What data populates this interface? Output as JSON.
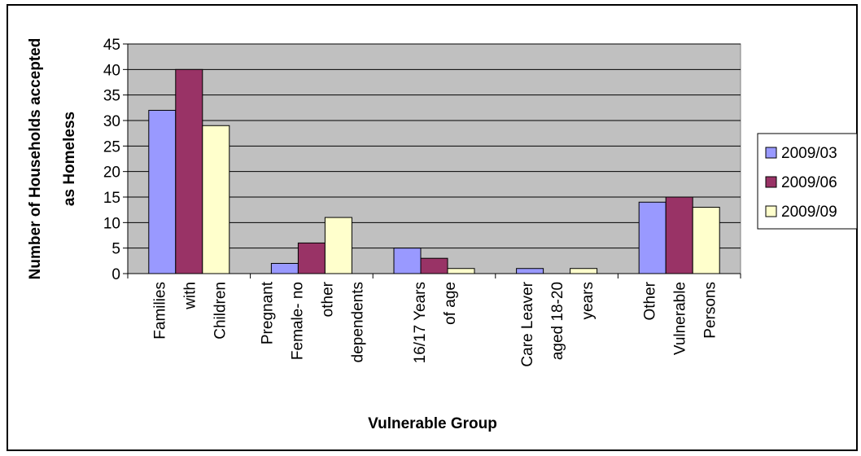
{
  "chart_data": {
    "type": "bar",
    "title": "",
    "xlabel": "Vulnerable Group",
    "ylabel": [
      "Number of Households accepted",
      "as Homeless"
    ],
    "ylim": [
      0,
      45
    ],
    "yticks": [
      0,
      5,
      10,
      15,
      20,
      25,
      30,
      35,
      40,
      45
    ],
    "grid": true,
    "legend_position": "right",
    "plot_background": "#c0c0c0",
    "categories": [
      [
        "Families",
        "with",
        "Children"
      ],
      [
        "Pregnant",
        "Female- no",
        "other",
        "dependents"
      ],
      [
        "16/17 Years",
        "of age"
      ],
      [
        "Care Leaver",
        "aged 18-20",
        "years"
      ],
      [
        "Other",
        "Vulnerable",
        "Persons"
      ]
    ],
    "series": [
      {
        "name": "2009/03",
        "color": "#9999ff",
        "values": [
          32,
          2,
          5,
          1,
          14
        ]
      },
      {
        "name": "2009/06",
        "color": "#993366",
        "values": [
          40,
          6,
          3,
          0,
          15
        ]
      },
      {
        "name": "2009/09",
        "color": "#ffffcc",
        "values": [
          29,
          11,
          1,
          1,
          13
        ]
      }
    ]
  }
}
